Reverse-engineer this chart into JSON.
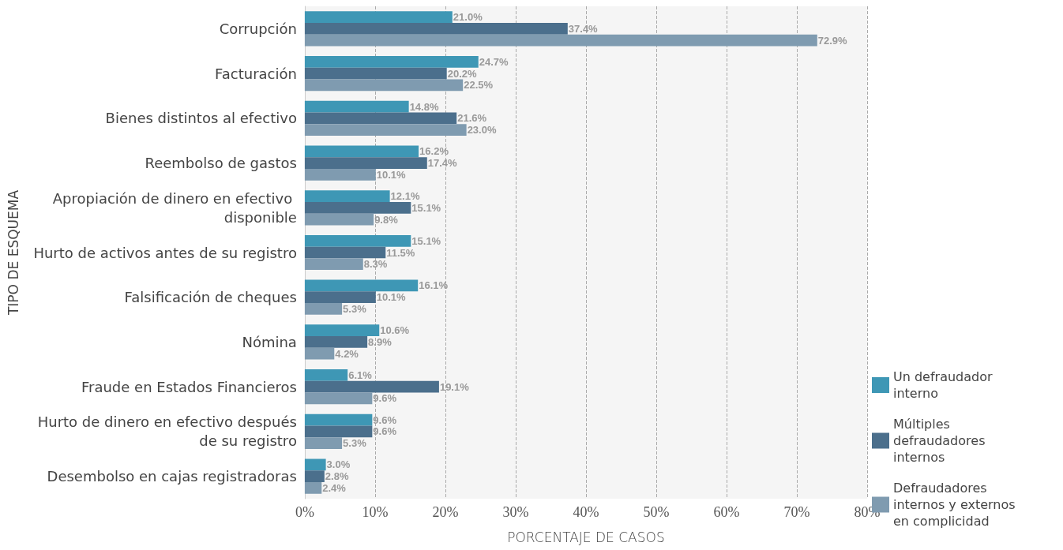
{
  "chart_data": {
    "type": "bar",
    "orientation": "horizontal",
    "xlabel": "PORCENTAJE DE CASOS",
    "ylabel": "TIPO DE ESQUEMA",
    "categories": [
      "Corrupción",
      "Facturación",
      "Bienes distintos al efectivo",
      "Reembolso de gastos",
      "Apropiación de dinero en efectivo disponible",
      "Hurto de activos antes de su registro",
      "Falsificación de cheques",
      "Nómina",
      "Fraude en Estados Financieros",
      "Hurto de dinero en efectivo después de su registro",
      "Desembolso en cajas registradoras"
    ],
    "series": [
      {
        "name": "Un defraudador interno",
        "color": "#3e97b5",
        "values": [
          21.0,
          24.7,
          14.8,
          16.2,
          12.1,
          15.1,
          16.1,
          10.6,
          6.1,
          9.6,
          3.0
        ],
        "value_labels": [
          "21.0%",
          "24.7%",
          "14.8%",
          "16.2%",
          "12.1%",
          "15.1%",
          "16.1%",
          "10.6%",
          "6.1%",
          "9.6%",
          "3.0%"
        ]
      },
      {
        "name": "Múltiples defraudadores internos",
        "color": "#4b6f8c",
        "values": [
          37.4,
          20.2,
          21.6,
          17.4,
          15.1,
          11.5,
          10.1,
          8.9,
          19.1,
          9.6,
          2.8
        ],
        "value_labels": [
          "37.4%",
          "20.2%",
          "21.6%",
          "17.4%",
          "15.1%",
          "11.5%",
          "10.1%",
          "8.9%",
          "19.1%",
          "9.6%",
          "2.8%"
        ]
      },
      {
        "name": "Defraudadores internos y externos en complicidad",
        "color": "#7f9bb0",
        "values": [
          72.9,
          22.5,
          23.0,
          10.1,
          9.8,
          8.3,
          5.3,
          4.2,
          9.6,
          5.3,
          2.4
        ],
        "value_labels": [
          "72.9%",
          "22.5%",
          "23.0%",
          "10.1%",
          "9.8%",
          "8.3%",
          "5.3%",
          "4.2%",
          "9.6%",
          "5.3%",
          "2.4%"
        ]
      }
    ],
    "xlim": [
      0,
      80
    ],
    "xticks": [
      {
        "value": 0,
        "label": "0%"
      },
      {
        "value": 10,
        "label": "10%"
      },
      {
        "value": 20,
        "label": "20%"
      },
      {
        "value": 30,
        "label": "30%"
      },
      {
        "value": 40,
        "label": "40%"
      },
      {
        "value": 50,
        "label": "50%"
      },
      {
        "value": 60,
        "label": "60%"
      },
      {
        "value": 70,
        "label": "70%"
      },
      {
        "value": 80,
        "label": "80%"
      }
    ],
    "grid": "x",
    "legend": "right"
  }
}
